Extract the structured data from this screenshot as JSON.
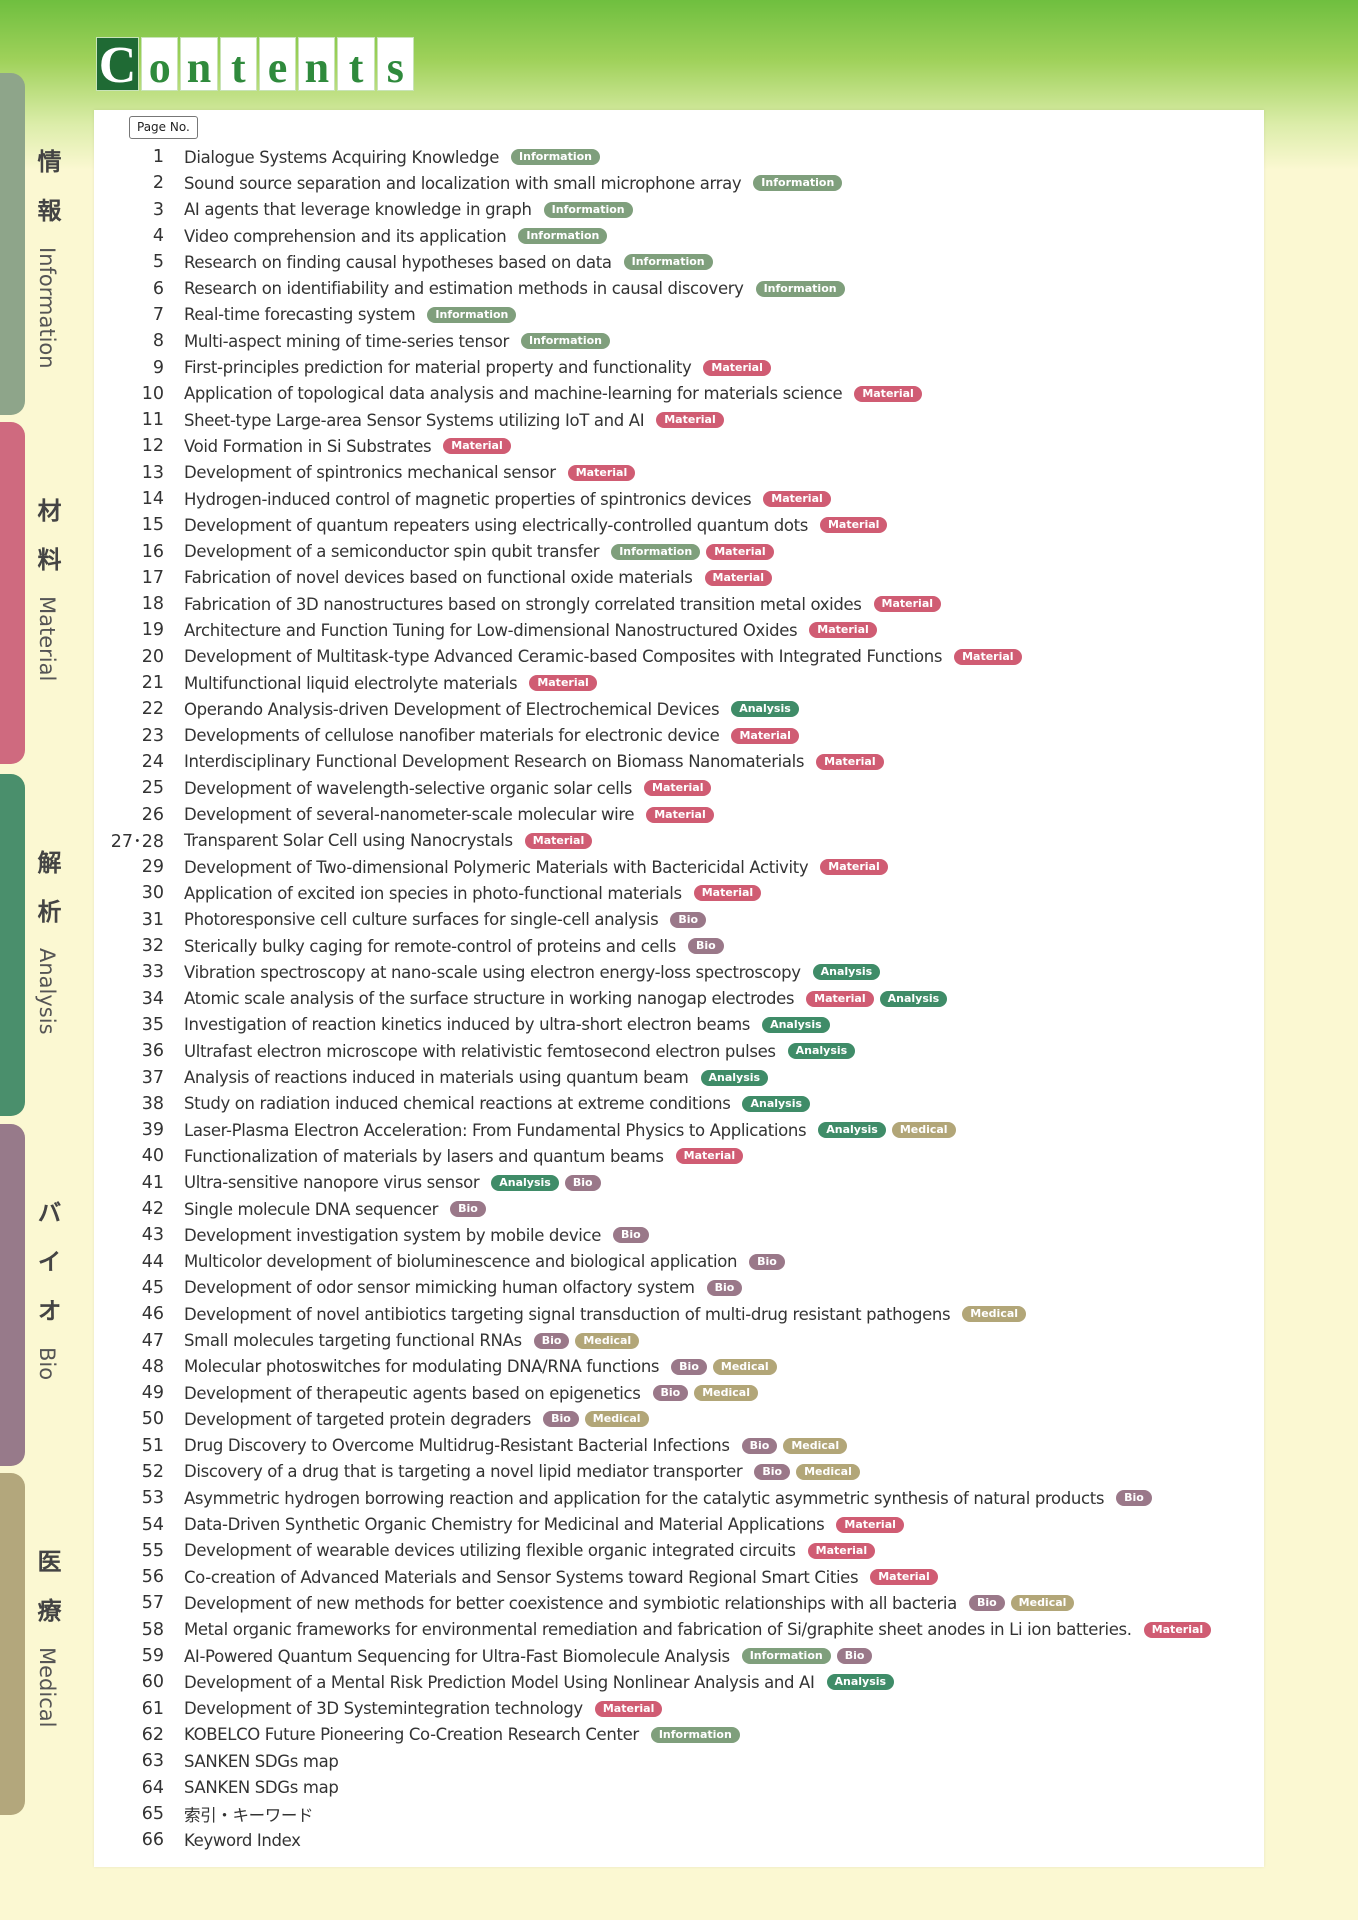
{
  "header": {
    "title": "Contents",
    "page_label": "Page No."
  },
  "sidebar": [
    {
      "jp": "情報",
      "en": "Information"
    },
    {
      "jp": "材料",
      "en": "Material"
    },
    {
      "jp": "解析",
      "en": "Analysis"
    },
    {
      "jp": "バイオ",
      "en": "Bio"
    },
    {
      "jp": "医療",
      "en": "Medical"
    }
  ],
  "rows": [
    [
      1,
      "Dialogue Systems Acquiring Knowledge",
      [
        "Information"
      ]
    ],
    [
      2,
      "Sound source separation and localization with small microphone array",
      [
        "Information"
      ]
    ],
    [
      3,
      "AI agents that leverage knowledge in graph",
      [
        "Information"
      ]
    ],
    [
      4,
      "Video comprehension and its application",
      [
        "Information"
      ]
    ],
    [
      5,
      "Research on finding causal hypotheses based on data",
      [
        "Information"
      ]
    ],
    [
      6,
      "Research on identifiability and estimation methods in causal discovery",
      [
        "Information"
      ]
    ],
    [
      7,
      "Real-time forecasting system",
      [
        "Information"
      ]
    ],
    [
      8,
      "Multi-aspect mining of time-series tensor",
      [
        "Information"
      ]
    ],
    [
      9,
      "First-principles prediction for material property and functionality",
      [
        "Material"
      ]
    ],
    [
      10,
      "Application of topological data analysis and machine-learning for materials science",
      [
        "Material"
      ]
    ],
    [
      11,
      "Sheet-type Large-area Sensor Systems utilizing IoT and AI",
      [
        "Material"
      ]
    ],
    [
      12,
      "Void Formation in Si Substrates",
      [
        "Material"
      ]
    ],
    [
      13,
      "Development of spintronics mechanical sensor",
      [
        "Material"
      ]
    ],
    [
      14,
      "Hydrogen-induced control of magnetic properties of spintronics devices",
      [
        "Material"
      ]
    ],
    [
      15,
      "Development of quantum repeaters using electrically-controlled quantum dots",
      [
        "Material"
      ]
    ],
    [
      16,
      "Development of a semiconductor spin qubit transfer",
      [
        "Information",
        "Material"
      ]
    ],
    [
      17,
      "Fabrication of novel devices based on functional oxide materials",
      [
        "Material"
      ]
    ],
    [
      18,
      "Fabrication of 3D nanostructures based on strongly correlated transition metal oxides",
      [
        "Material"
      ]
    ],
    [
      19,
      "Architecture and Function Tuning for Low-dimensional Nanostructured Oxides",
      [
        "Material"
      ]
    ],
    [
      20,
      "Development of Multitask-type Advanced Ceramic-based Composites with Integrated Functions",
      [
        "Material"
      ]
    ],
    [
      21,
      "Multifunctional liquid electrolyte materials",
      [
        "Material"
      ]
    ],
    [
      22,
      "Operando Analysis-driven Development of Electrochemical Devices",
      [
        "Analysis"
      ]
    ],
    [
      23,
      "Developments of cellulose nanofiber materials for electronic device",
      [
        "Material"
      ]
    ],
    [
      24,
      "Interdisciplinary Functional Development Research on Biomass Nanomaterials",
      [
        "Material"
      ]
    ],
    [
      25,
      "Development of wavelength-selective organic solar cells",
      [
        "Material"
      ]
    ],
    [
      26,
      "Development of several-nanometer-scale molecular wire",
      [
        "Material"
      ]
    ],
    [
      "27･28",
      "Transparent Solar Cell using Nanocrystals",
      [
        "Material"
      ]
    ],
    [
      29,
      "Development of Two-dimensional Polymeric Materials with Bactericidal Activity",
      [
        "Material"
      ]
    ],
    [
      30,
      "Application of excited ion species in photo-functional materials",
      [
        "Material"
      ]
    ],
    [
      31,
      "Photoresponsive cell culture surfaces for single-cell analysis",
      [
        "Bio"
      ]
    ],
    [
      32,
      "Sterically bulky caging for remote-control of proteins and cells",
      [
        "Bio"
      ]
    ],
    [
      33,
      "Vibration spectroscopy at nano-scale using electron energy-loss spectroscopy",
      [
        "Analysis"
      ]
    ],
    [
      34,
      "Atomic scale analysis of the surface structure in working nanogap electrodes",
      [
        "Material",
        "Analysis"
      ]
    ],
    [
      35,
      "Investigation of reaction kinetics induced by ultra-short electron beams",
      [
        "Analysis"
      ]
    ],
    [
      36,
      "Ultrafast electron microscope with relativistic femtosecond electron pulses",
      [
        "Analysis"
      ]
    ],
    [
      37,
      "Analysis of reactions induced in materials using quantum beam",
      [
        "Analysis"
      ]
    ],
    [
      38,
      "Study on radiation induced chemical reactions at extreme conditions",
      [
        "Analysis"
      ]
    ],
    [
      39,
      "Laser-Plasma Electron Acceleration: From Fundamental Physics to Applications",
      [
        "Analysis",
        "Medical"
      ]
    ],
    [
      40,
      "Functionalization of materials by lasers and quantum beams",
      [
        "Material"
      ]
    ],
    [
      41,
      "Ultra-sensitive nanopore virus sensor",
      [
        "Analysis",
        "Bio"
      ]
    ],
    [
      42,
      "Single molecule DNA sequencer",
      [
        "Bio"
      ]
    ],
    [
      43,
      "Development investigation system by mobile device",
      [
        "Bio"
      ]
    ],
    [
      44,
      "Multicolor development of bioluminescence and biological application",
      [
        "Bio"
      ]
    ],
    [
      45,
      "Development of odor sensor mimicking human olfactory system",
      [
        "Bio"
      ]
    ],
    [
      46,
      "Development of novel antibiotics targeting signal transduction of multi-drug resistant pathogens",
      [
        "Medical"
      ]
    ],
    [
      47,
      "Small molecules targeting functional RNAs",
      [
        "Bio",
        "Medical"
      ]
    ],
    [
      48,
      "Molecular photoswitches for modulating DNA/RNA functions",
      [
        "Bio",
        "Medical"
      ]
    ],
    [
      49,
      "Development of therapeutic agents based on epigenetics",
      [
        "Bio",
        "Medical"
      ]
    ],
    [
      50,
      "Development of targeted protein degraders",
      [
        "Bio",
        "Medical"
      ]
    ],
    [
      51,
      "Drug Discovery to Overcome Multidrug-Resistant Bacterial Infections",
      [
        "Bio",
        "Medical"
      ]
    ],
    [
      52,
      "Discovery of a drug that is targeting a novel lipid mediator transporter",
      [
        "Bio",
        "Medical"
      ]
    ],
    [
      53,
      "Asymmetric hydrogen borrowing reaction and application for the catalytic asymmetric synthesis of natural products",
      [
        "Bio"
      ]
    ],
    [
      54,
      "Data-Driven Synthetic Organic Chemistry for Medicinal and Material Applications",
      [
        "Material"
      ]
    ],
    [
      55,
      "Development of wearable devices utilizing flexible organic integrated circuits",
      [
        "Material"
      ]
    ],
    [
      56,
      "Co-creation of Advanced Materials and Sensor Systems toward Regional Smart Cities",
      [
        "Material"
      ]
    ],
    [
      57,
      "Development of new methods for better coexistence and symbiotic relationships with all bacteria",
      [
        "Bio",
        "Medical"
      ]
    ],
    [
      58,
      "Metal organic frameworks for environmental remediation and fabrication of Si/graphite sheet anodes in Li ion batteries.",
      [
        "Material"
      ]
    ],
    [
      59,
      "AI-Powered Quantum Sequencing for Ultra-Fast Biomolecule Analysis",
      [
        "Information",
        "Bio"
      ]
    ],
    [
      60,
      "Development of a Mental Risk Prediction Model Using Nonlinear Analysis and AI",
      [
        "Analysis"
      ]
    ],
    [
      61,
      "Development of 3D Systemintegration technology",
      [
        "Material"
      ]
    ],
    [
      62,
      "KOBELCO Future Pioneering Co-Creation Research Center",
      [
        "Information"
      ]
    ],
    [
      63,
      "SANKEN SDGs map"
    ],
    [
      64,
      "SANKEN SDGs map"
    ],
    [
      65,
      "索引・キーワード"
    ],
    [
      66,
      "Keyword Index"
    ]
  ]
}
